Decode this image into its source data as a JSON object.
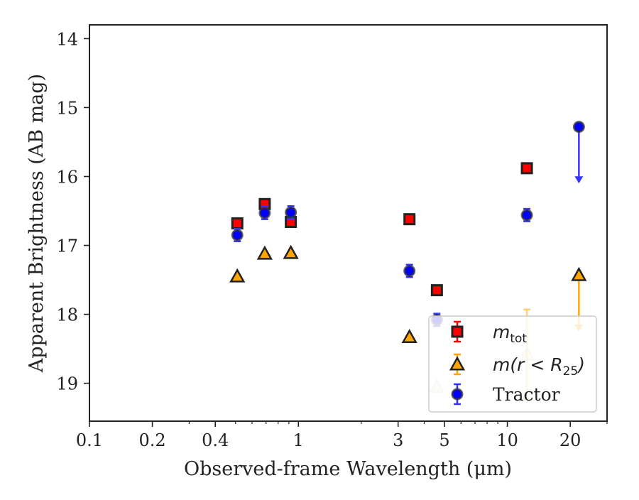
{
  "chart_data": {
    "type": "scatter",
    "xlabel": "Observed-frame Wavelength (μm)",
    "ylabel": "Apparent Brightness (AB mag)",
    "xscale": "log",
    "xlim": [
      0.1,
      30
    ],
    "ylim": [
      19.55,
      13.8
    ],
    "y_inverted": true,
    "x_ticks": [
      0.1,
      0.2,
      0.4,
      1,
      3,
      5,
      10,
      20
    ],
    "x_tick_labels": [
      "0.1",
      "0.2",
      "0.4",
      "1",
      "3",
      "5",
      "10",
      "20"
    ],
    "y_ticks": [
      14,
      15,
      16,
      17,
      18,
      19
    ],
    "y_tick_labels": [
      "14",
      "15",
      "16",
      "17",
      "18",
      "19"
    ],
    "legend_position": "lower-right",
    "grid": false,
    "series": [
      {
        "name": "m_tot",
        "legend_base": "m",
        "legend_sub": "tot",
        "marker": "square",
        "color": "#ff0000",
        "edge_color": "#222222",
        "points": [
          {
            "x": 0.51,
            "y": 16.68,
            "err": 0.07
          },
          {
            "x": 0.69,
            "y": 16.4,
            "err": 0.07
          },
          {
            "x": 0.92,
            "y": 16.66,
            "err": 0.07
          },
          {
            "x": 3.4,
            "y": 16.62,
            "err": 0.07
          },
          {
            "x": 4.6,
            "y": 17.65,
            "err": 0.07
          },
          {
            "x": 12.4,
            "y": 15.88,
            "err": 0.07
          }
        ]
      },
      {
        "name": "m(r < R_25)",
        "legend_base": "m(r < R",
        "legend_sub": "25",
        "legend_tail": ")",
        "marker": "triangle",
        "color": "#ffa500",
        "edge_color": "#222222",
        "points": [
          {
            "x": 0.51,
            "y": 17.45
          },
          {
            "x": 0.69,
            "y": 17.12
          },
          {
            "x": 0.92,
            "y": 17.11
          },
          {
            "x": 3.4,
            "y": 18.33
          },
          {
            "x": 4.6,
            "y": 19.05,
            "faded": true
          },
          {
            "x": 12.4,
            "y": 18.58,
            "faded": true,
            "err": 0.65
          },
          {
            "x": 22.0,
            "y": 17.43,
            "upper_limit_to": 18.25
          }
        ]
      },
      {
        "name": "Tractor",
        "marker": "circle",
        "color": "#0000ff",
        "edge_color": "#333333",
        "points": [
          {
            "x": 0.51,
            "y": 16.85,
            "err": 0.09
          },
          {
            "x": 0.69,
            "y": 16.53,
            "err": 0.09
          },
          {
            "x": 0.92,
            "y": 16.52,
            "err": 0.09
          },
          {
            "x": 3.4,
            "y": 17.37,
            "err": 0.09
          },
          {
            "x": 4.6,
            "y": 18.08,
            "err": 0.09
          },
          {
            "x": 12.4,
            "y": 16.56,
            "err": 0.09
          },
          {
            "x": 22.0,
            "y": 15.28,
            "upper_limit_to": 16.1
          }
        ]
      }
    ]
  }
}
